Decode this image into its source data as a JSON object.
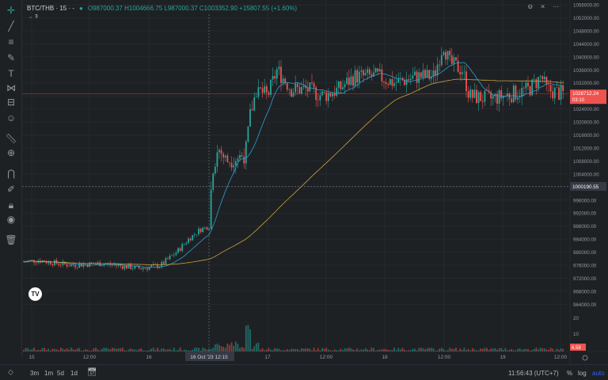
{
  "header": {
    "symbol": "BTC/THB · 15 · -",
    "ohlc": "O987000.37 H1004666.75 L987000.37 C1003352.90 +15807.55 (+1.60%)",
    "legend_count": "3"
  },
  "price_axis": {
    "labels": [
      "1056000.00",
      "1052000.00",
      "1048000.00",
      "1044000.00",
      "1040000.00",
      "1036000.00",
      "1032000.00",
      "1028000.00",
      "1024000.00",
      "1020000.00",
      "1016000.00",
      "1012000.00",
      "1008000.00",
      "1004000.00",
      "1000000.00",
      "996000.00",
      "992000.00",
      "988000.00",
      "984000.00",
      "980000.00",
      "976000.00",
      "972000.00",
      "968000.00",
      "964000.00"
    ],
    "current_price": "1028712.24",
    "countdown": "03:10",
    "crosshair_price": "1000190.55",
    "volume_labels": [
      "20",
      "10"
    ],
    "volume_current": "6.58"
  },
  "time_axis": {
    "labels": [
      "15",
      "12:00",
      "16",
      "16 Oct '23  12:15",
      "17",
      "12:00",
      "18",
      "12:00",
      "19",
      "12:00"
    ]
  },
  "bottom": {
    "timeframes": [
      "3m",
      "1m",
      "5d",
      "1d"
    ],
    "clock": "11:56:43 (UTC+7)",
    "percent": "%",
    "log": "log",
    "auto": "auto"
  },
  "colors": {
    "up": "#26a69a",
    "down": "#ef5350",
    "ma_fast": "#2a9fd6",
    "ma_slow": "#c9a23b",
    "background": "#1e2124"
  },
  "tools": [
    "crosshair-icon",
    "trendline-icon",
    "fib-icon",
    "brush-icon",
    "text-icon",
    "pattern-icon",
    "ruler-menu-icon",
    "emoji-icon",
    "ruler-icon",
    "zoom-icon",
    "magnet-icon",
    "lock-drawing-icon",
    "lock-icon",
    "eye-icon",
    "trash-icon"
  ]
}
